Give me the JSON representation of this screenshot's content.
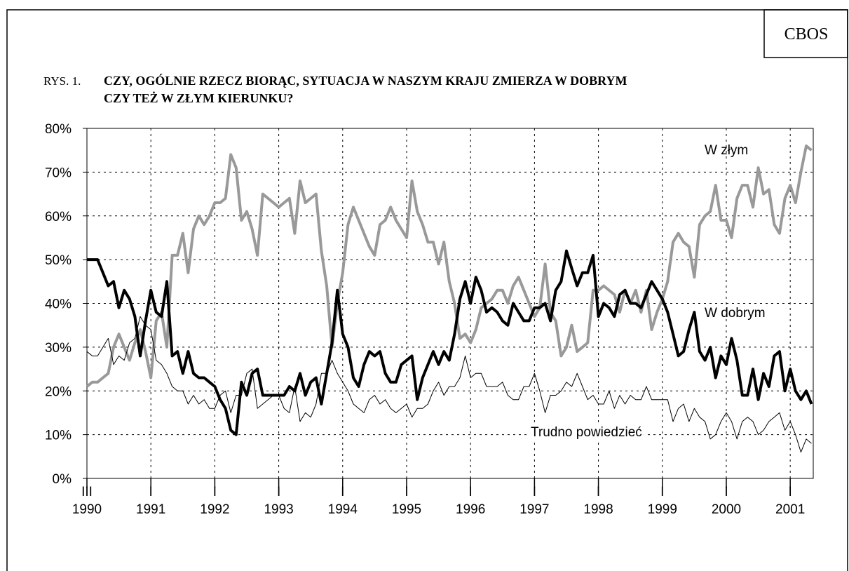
{
  "chart_data": {
    "type": "line",
    "source": "CBOS",
    "figure_label": "RYS. 1.",
    "title": [
      "CZY, OGÓLNIE RZECZ BIORĄC, SYTUACJA W NASZYM KRAJU ZMIERZA W DOBRYM",
      "CZY TEŻ W ZŁYM KIERUNKU?"
    ],
    "x": [
      1990,
      1990.083,
      1990.167,
      1990.25,
      1990.333,
      1990.417,
      1990.5,
      1990.583,
      1990.667,
      1990.75,
      1990.833,
      1990.917,
      1991,
      1991.083,
      1991.167,
      1991.25,
      1991.333,
      1991.417,
      1991.5,
      1991.583,
      1991.667,
      1991.75,
      1991.833,
      1991.917,
      1992,
      1992.083,
      1992.167,
      1992.25,
      1992.333,
      1992.417,
      1992.5,
      1992.583,
      1992.667,
      1992.75,
      1992.833,
      1992.917,
      1993,
      1993.083,
      1993.167,
      1993.25,
      1993.333,
      1993.417,
      1993.5,
      1993.583,
      1993.667,
      1993.75,
      1993.833,
      1993.917,
      1994,
      1994.083,
      1994.167,
      1994.25,
      1994.333,
      1994.417,
      1994.5,
      1994.583,
      1994.667,
      1994.75,
      1994.833,
      1994.917,
      1995,
      1995.083,
      1995.167,
      1995.25,
      1995.333,
      1995.417,
      1995.5,
      1995.583,
      1995.667,
      1995.75,
      1995.833,
      1995.917,
      1996,
      1996.083,
      1996.167,
      1996.25,
      1996.333,
      1996.417,
      1996.5,
      1996.583,
      1996.667,
      1996.75,
      1996.833,
      1996.917,
      1997,
      1997.083,
      1997.167,
      1997.25,
      1997.333,
      1997.417,
      1997.5,
      1997.583,
      1997.667,
      1997.75,
      1997.833,
      1997.917,
      1998,
      1998.083,
      1998.167,
      1998.25,
      1998.333,
      1998.417,
      1998.5,
      1998.583,
      1998.667,
      1998.75,
      1998.833,
      1998.917,
      1999,
      1999.083,
      1999.167,
      1999.25,
      1999.333,
      1999.417,
      1999.5,
      1999.583,
      1999.667,
      1999.75,
      1999.833,
      1999.917,
      2000,
      2000.083,
      2000.167,
      2000.25,
      2000.333,
      2000.417,
      2000.5,
      2000.583,
      2000.667,
      2000.75,
      2000.833,
      2000.917,
      2001,
      2001.083,
      2001.167,
      2001.25,
      2001.333
    ],
    "series": [
      {
        "name": "W złym",
        "color": "#999999",
        "width": 4,
        "values": [
          21,
          22,
          22,
          23,
          24,
          30,
          33,
          30,
          27,
          31,
          34,
          29,
          23,
          36,
          38,
          30,
          51,
          51,
          56,
          47,
          57,
          60,
          58,
          60,
          63,
          63,
          64,
          74,
          71,
          59,
          61,
          57,
          51,
          65,
          64,
          63,
          62,
          63,
          64,
          56,
          68,
          63,
          64,
          65,
          52,
          44,
          30,
          40,
          47,
          58,
          62,
          59,
          56,
          53,
          51,
          58,
          59,
          62,
          59,
          57,
          55,
          68,
          61,
          58,
          54,
          54,
          49,
          54,
          45,
          40,
          32,
          33,
          31,
          34,
          39,
          40,
          41,
          43,
          43,
          40,
          44,
          46,
          43,
          40,
          37,
          39,
          49,
          38,
          36,
          28,
          30,
          35,
          29,
          30,
          31,
          43,
          43,
          44,
          43,
          42,
          38,
          43,
          40,
          43,
          38,
          43,
          34,
          38,
          41,
          45,
          54,
          56,
          54,
          53,
          46,
          58,
          60,
          61,
          67,
          59,
          59,
          55,
          64,
          67,
          67,
          62,
          71,
          65,
          66,
          58,
          56,
          64,
          67,
          63,
          70,
          76,
          75
        ]
      },
      {
        "name": "W dobrym",
        "color": "#000000",
        "width": 4,
        "values": [
          50,
          50,
          50,
          47,
          44,
          45,
          39,
          43,
          41,
          37,
          28,
          36,
          43,
          38,
          37,
          45,
          28,
          29,
          24,
          29,
          24,
          23,
          23,
          22,
          21,
          18,
          16,
          11,
          10,
          22,
          19,
          24,
          25,
          19,
          19,
          19,
          19,
          19,
          21,
          20,
          24,
          19,
          22,
          23,
          17,
          24,
          31,
          43,
          33,
          30,
          23,
          21,
          26,
          29,
          28,
          29,
          24,
          22,
          22,
          26,
          27,
          28,
          18,
          23,
          26,
          29,
          26,
          29,
          27,
          33,
          41,
          45,
          40,
          46,
          43,
          38,
          39,
          38,
          36,
          35,
          40,
          38,
          36,
          36,
          39,
          39,
          40,
          36,
          43,
          45,
          52,
          48,
          44,
          47,
          47,
          51,
          37,
          40,
          39,
          37,
          42,
          43,
          40,
          40,
          39,
          42,
          45,
          43,
          41,
          38,
          33,
          28,
          29,
          34,
          38,
          29,
          27,
          30,
          23,
          28,
          26,
          32,
          27,
          19,
          19,
          25,
          18,
          24,
          21,
          28,
          29,
          20,
          25,
          20,
          18,
          20,
          17
        ]
      },
      {
        "name": "Trudno powiedzieć",
        "color": "#000000",
        "width": 1,
        "values": [
          29,
          28,
          28,
          30,
          32,
          26,
          28,
          27,
          31,
          32,
          37,
          35,
          34,
          27,
          26,
          24,
          21,
          20,
          20,
          17,
          19,
          17,
          18,
          16,
          16,
          19,
          20,
          15,
          19,
          19,
          24,
          25,
          16,
          17,
          18,
          19,
          19,
          16,
          15,
          21,
          13,
          15,
          14,
          17,
          24,
          24,
          27,
          24,
          22,
          20,
          17,
          16,
          15,
          18,
          19,
          17,
          18,
          16,
          15,
          16,
          17,
          14,
          16,
          16,
          17,
          20,
          22,
          19,
          21,
          21,
          23,
          28,
          23,
          24,
          24,
          21,
          21,
          21,
          22,
          19,
          18,
          18,
          21,
          21,
          24,
          20,
          15,
          19,
          19,
          20,
          22,
          21,
          24,
          21,
          18,
          19,
          17,
          17,
          20,
          16,
          19,
          17,
          19,
          18,
          18,
          21,
          18,
          18,
          18,
          18,
          13,
          16,
          17,
          13,
          16,
          14,
          13,
          9,
          10,
          13,
          15,
          13,
          9,
          13,
          14,
          13,
          10,
          11,
          13,
          14,
          15,
          11,
          13,
          10,
          6,
          9,
          8
        ]
      }
    ],
    "xlim": [
      1990,
      2001.36
    ],
    "xticks": [
      {
        "value": 1990,
        "label": [
          "III",
          "1990"
        ]
      },
      {
        "value": 1991,
        "label": [
          "I",
          "1991"
        ]
      },
      {
        "value": 1992,
        "label": [
          "I",
          "1992"
        ]
      },
      {
        "value": 1993,
        "label": [
          "I",
          "1993"
        ]
      },
      {
        "value": 1994,
        "label": [
          "I",
          "1994"
        ]
      },
      {
        "value": 1995,
        "label": [
          "I",
          "1995"
        ]
      },
      {
        "value": 1996,
        "label": [
          "I",
          "1996"
        ]
      },
      {
        "value": 1997,
        "label": [
          "I",
          "1997"
        ]
      },
      {
        "value": 1998,
        "label": [
          "I",
          "1998"
        ]
      },
      {
        "value": 1999,
        "label": [
          "I",
          "1999"
        ]
      },
      {
        "value": 2000,
        "label": [
          "I",
          "2000"
        ]
      },
      {
        "value": 2001,
        "label": [
          "I",
          "2001"
        ]
      }
    ],
    "ylim": [
      0,
      80
    ],
    "yticks": [
      {
        "value": 0,
        "label": "0%"
      },
      {
        "value": 10,
        "label": "10%"
      },
      {
        "value": 20,
        "label": "20%"
      },
      {
        "value": 30,
        "label": "30%"
      },
      {
        "value": 40,
        "label": "40%"
      },
      {
        "value": 50,
        "label": "50%"
      },
      {
        "value": 60,
        "label": "60%"
      },
      {
        "value": 70,
        "label": "70%"
      },
      {
        "value": 80,
        "label": "80%"
      }
    ],
    "grid": true
  }
}
